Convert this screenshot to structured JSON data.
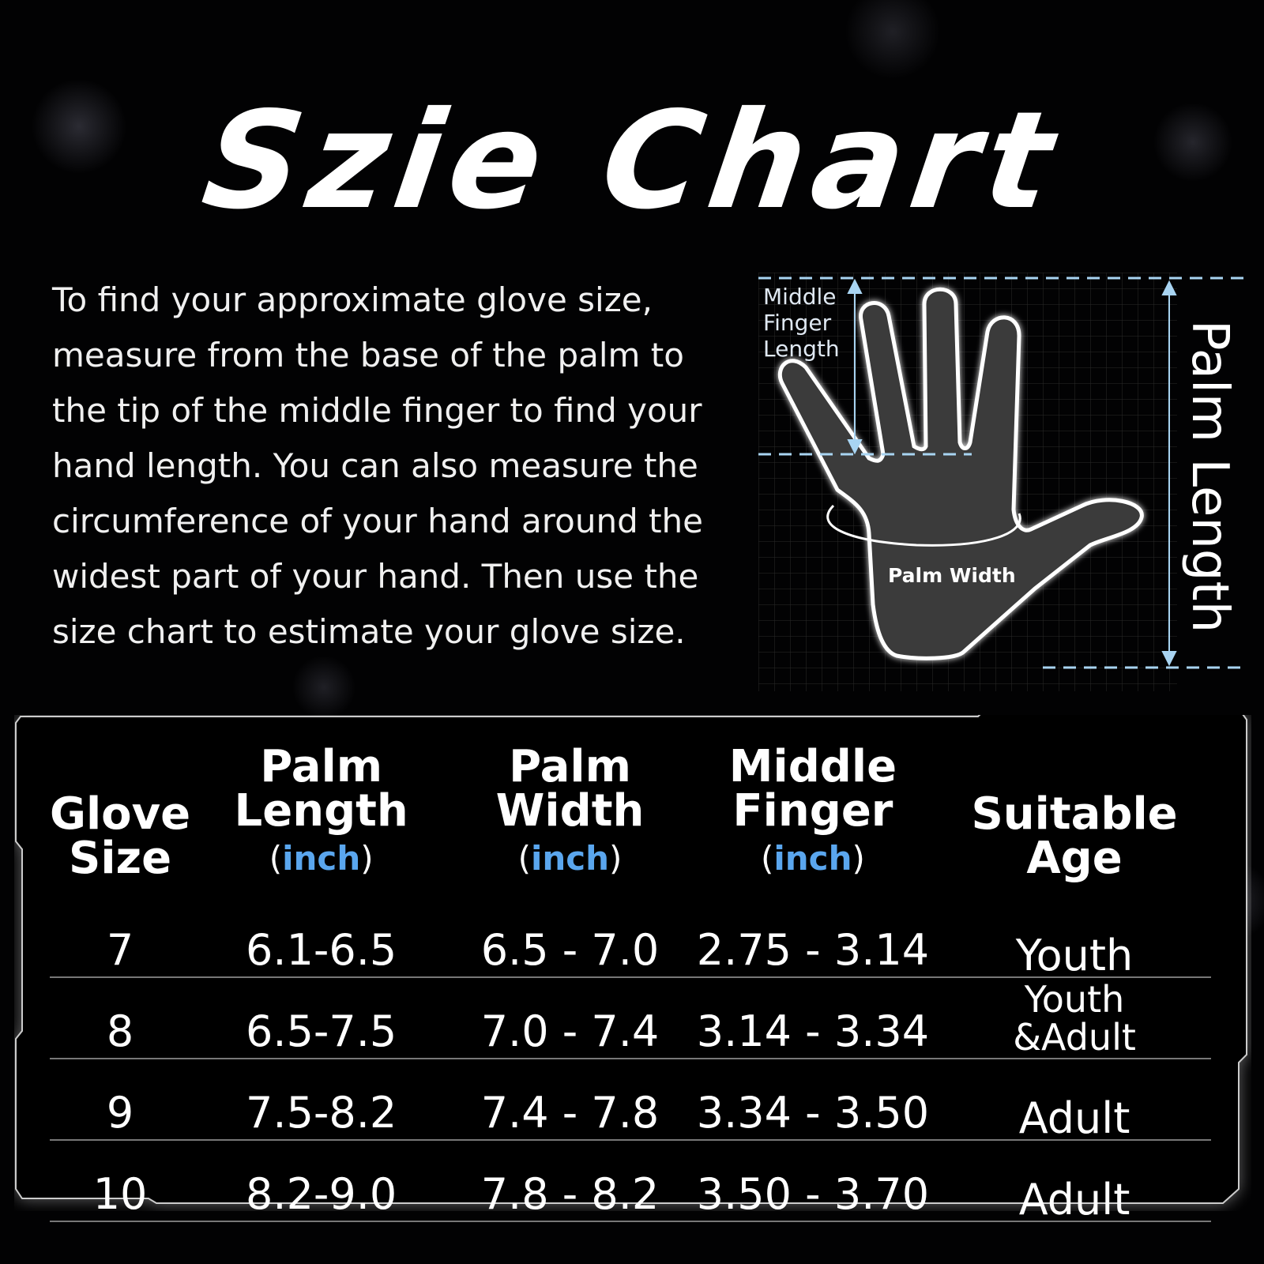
{
  "title": "Szie Chart",
  "intro": "To find your approximate glove size, measure from the base of the palm to the tip of the middle finger to find your hand length. You can also measure the circumference of your hand around the widest part of your hand. Then use the size chart to estimate your glove size.",
  "diagram": {
    "middle_finger_label_1": "Middle",
    "middle_finger_label_2": "Finger",
    "middle_finger_label_3": "Length",
    "palm_width_label": "Palm Width",
    "palm_length_label": "Palm Length",
    "accent": "#a8d4f2"
  },
  "table": {
    "unit_open": "(",
    "unit": "inch",
    "unit_close": ")",
    "headers": [
      {
        "line1": "Glove",
        "line2": "Size"
      },
      {
        "line1": "Palm",
        "line2": "Length"
      },
      {
        "line1": "Palm",
        "line2": "Width"
      },
      {
        "line1": "Middle",
        "line2": "Finger"
      },
      {
        "line1": "Suitable",
        "line2": "Age"
      }
    ],
    "rows": [
      {
        "size": "7",
        "palm_length": "6.1-6.5",
        "palm_width": "6.5 - 7.0",
        "middle_finger": "2.75 - 3.14",
        "age": "Youth"
      },
      {
        "size": "8",
        "palm_length": "6.5-7.5",
        "palm_width": "7.0 - 7.4",
        "middle_finger": "3.14 - 3.34",
        "age": "Youth &Adult"
      },
      {
        "size": "9",
        "palm_length": "7.5-8.2",
        "palm_width": "7.4 - 7.8",
        "middle_finger": "3.34 - 3.50",
        "age": "Adult"
      },
      {
        "size": "10",
        "palm_length": "8.2-9.0",
        "palm_width": "7.8 - 8.2",
        "middle_finger": "3.50 - 3.70",
        "age": "Adult"
      }
    ],
    "unit_color": "#5aa6ee"
  }
}
